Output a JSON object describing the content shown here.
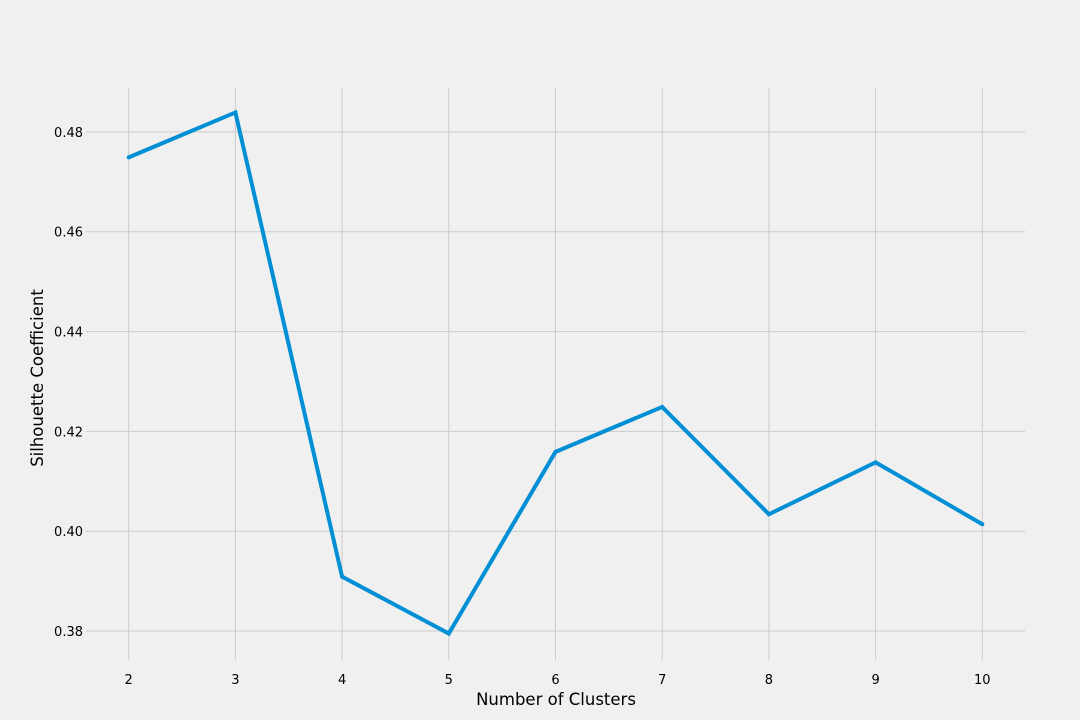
{
  "chart_data": {
    "type": "line",
    "title": "",
    "xlabel": "Number of Clusters",
    "ylabel": "Silhouette Coefficient",
    "x": [
      2,
      3,
      4,
      5,
      6,
      7,
      8,
      9,
      10
    ],
    "series": [
      {
        "values": [
          0.4749,
          0.4839,
          0.3909,
          0.3795,
          0.4159,
          0.4249,
          0.4034,
          0.4138,
          0.4014
        ]
      }
    ],
    "xticks": [
      "2",
      "3",
      "4",
      "5",
      "6",
      "7",
      "8",
      "9",
      "10"
    ],
    "yticks": [
      "0.38",
      "0.40",
      "0.42",
      "0.44",
      "0.46",
      "0.48"
    ],
    "xlim": [
      1.6,
      10.4
    ],
    "ylim": [
      0.3742,
      0.4888
    ],
    "grid": true,
    "legend": "none",
    "colors": {
      "background": "#f0f0f0",
      "grid": "#cbcbcb",
      "line": "#008fd5"
    }
  }
}
